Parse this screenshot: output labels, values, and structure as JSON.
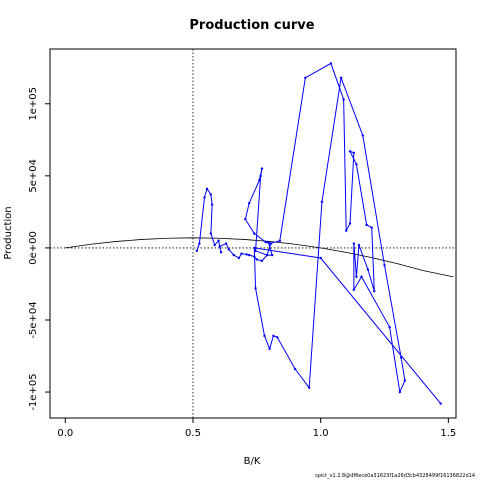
{
  "chart_data": {
    "type": "line",
    "title": "Production curve",
    "xlabel": "B/K",
    "ylabel": "Production",
    "footnote": "spict_v1.2.8@df6ece0a31623f1a26d3cb4328499f16136822d14",
    "xlim": [
      -0.06,
      1.53
    ],
    "ylim": [
      -118000,
      138000
    ],
    "x_ticks": [
      {
        "value": 0.0,
        "label": "0.0"
      },
      {
        "value": 0.5,
        "label": "0.5"
      },
      {
        "value": 1.0,
        "label": "1.0"
      },
      {
        "value": 1.5,
        "label": "1.5"
      }
    ],
    "y_ticks": [
      {
        "value": -100000,
        "label": "-1e+05"
      },
      {
        "value": -50000,
        "label": "-5e+04"
      },
      {
        "value": 0,
        "label": "0e+00"
      },
      {
        "value": 50000,
        "label": "5e+04"
      },
      {
        "value": 100000,
        "label": "1e+05"
      }
    ],
    "reference_lines": {
      "vertical_x": 0.5,
      "horizontal_y": 0
    },
    "colors": {
      "observed": "#0000ff",
      "model": "#000000"
    },
    "model_curve": {
      "x": [
        0.0,
        0.1,
        0.2,
        0.3,
        0.4,
        0.5,
        0.6,
        0.7,
        0.8,
        0.9,
        1.0,
        1.1,
        1.2,
        1.3,
        1.4,
        1.52
      ],
      "y": [
        0,
        2520,
        4480,
        5880,
        6720,
        7000,
        6720,
        5880,
        4480,
        2520,
        0,
        -3080,
        -6720,
        -10920,
        -15680,
        -20100
      ]
    },
    "series": [
      {
        "x": [
          0.515,
          0.525,
          0.545,
          0.555,
          0.57,
          0.575,
          0.57,
          0.585,
          0.6,
          0.61,
          0.605,
          0.63,
          0.64,
          0.66,
          0.68,
          0.69,
          0.71,
          0.72,
          0.74,
          0.75,
          0.77,
          0.79,
          0.805,
          0.795,
          0.81,
          0.79,
          0.745,
          0.765,
          0.77,
          0.76,
          0.72,
          0.705,
          0.74,
          0.785,
          0.8,
          0.84,
          0.94,
          1.04,
          1.09,
          1.1,
          1.115,
          1.13,
          1.115,
          1.14,
          1.18,
          1.2,
          1.21,
          1.185,
          1.15,
          1.14,
          1.13,
          1.13,
          1.16,
          1.27,
          1.31,
          1.33,
          1.315,
          1.25,
          1.165,
          1.08,
          1.005,
          0.955,
          0.9,
          0.83,
          0.815,
          0.8,
          0.78,
          0.745,
          0.74,
          1.0,
          1.47
        ],
        "y": [
          -2000,
          3000,
          35000,
          41000,
          37000,
          30000,
          10000,
          2000,
          5000,
          -3000,
          1000,
          3000,
          -1000,
          -5000,
          -7000,
          -4000,
          -4500,
          -5000,
          -6000,
          -8000,
          -9000,
          -5000,
          3000,
          4000,
          -5000,
          -5000,
          -2000,
          50000,
          55000,
          47000,
          31000,
          20000,
          10000,
          4000,
          3000,
          5000,
          118000,
          128000,
          103000,
          12000,
          17000,
          66000,
          67000,
          58000,
          16000,
          14000,
          -30000,
          -15000,
          2000,
          -20000,
          3000,
          -29000,
          -20000,
          -55000,
          -100000,
          -92000,
          -76000,
          -12000,
          78000,
          118000,
          32000,
          -97000,
          -84000,
          -62000,
          -61000,
          -70000,
          -61000,
          -28000,
          0,
          -7000,
          -108000
        ]
      }
    ]
  }
}
